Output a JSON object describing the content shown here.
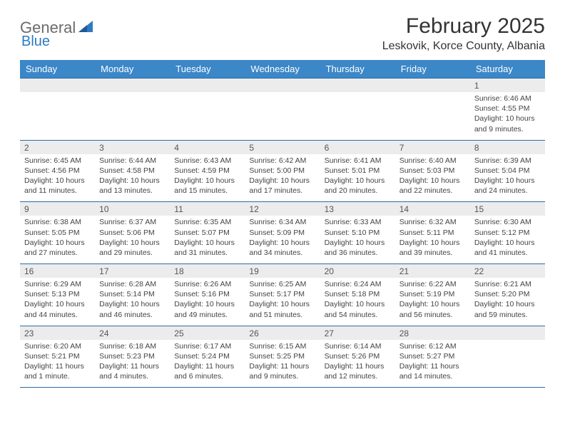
{
  "logo": {
    "word1": "General",
    "word2": "Blue"
  },
  "title": "February 2025",
  "location": "Leskovik, Korce County, Albania",
  "colors": {
    "header_bg": "#3b87c8",
    "header_text": "#ffffff",
    "daynum_bg": "#ececec",
    "border": "#2e6ca8",
    "logo_gray": "#6b6b6b",
    "logo_blue": "#2e7bbf"
  },
  "day_names": [
    "Sunday",
    "Monday",
    "Tuesday",
    "Wednesday",
    "Thursday",
    "Friday",
    "Saturday"
  ],
  "weeks": [
    {
      "nums": [
        "",
        "",
        "",
        "",
        "",
        "",
        "1"
      ],
      "data": [
        {},
        {},
        {},
        {},
        {},
        {},
        {
          "sunrise": "Sunrise: 6:46 AM",
          "sunset": "Sunset: 4:55 PM",
          "day1": "Daylight: 10 hours",
          "day2": "and 9 minutes."
        }
      ]
    },
    {
      "nums": [
        "2",
        "3",
        "4",
        "5",
        "6",
        "7",
        "8"
      ],
      "data": [
        {
          "sunrise": "Sunrise: 6:45 AM",
          "sunset": "Sunset: 4:56 PM",
          "day1": "Daylight: 10 hours",
          "day2": "and 11 minutes."
        },
        {
          "sunrise": "Sunrise: 6:44 AM",
          "sunset": "Sunset: 4:58 PM",
          "day1": "Daylight: 10 hours",
          "day2": "and 13 minutes."
        },
        {
          "sunrise": "Sunrise: 6:43 AM",
          "sunset": "Sunset: 4:59 PM",
          "day1": "Daylight: 10 hours",
          "day2": "and 15 minutes."
        },
        {
          "sunrise": "Sunrise: 6:42 AM",
          "sunset": "Sunset: 5:00 PM",
          "day1": "Daylight: 10 hours",
          "day2": "and 17 minutes."
        },
        {
          "sunrise": "Sunrise: 6:41 AM",
          "sunset": "Sunset: 5:01 PM",
          "day1": "Daylight: 10 hours",
          "day2": "and 20 minutes."
        },
        {
          "sunrise": "Sunrise: 6:40 AM",
          "sunset": "Sunset: 5:03 PM",
          "day1": "Daylight: 10 hours",
          "day2": "and 22 minutes."
        },
        {
          "sunrise": "Sunrise: 6:39 AM",
          "sunset": "Sunset: 5:04 PM",
          "day1": "Daylight: 10 hours",
          "day2": "and 24 minutes."
        }
      ]
    },
    {
      "nums": [
        "9",
        "10",
        "11",
        "12",
        "13",
        "14",
        "15"
      ],
      "data": [
        {
          "sunrise": "Sunrise: 6:38 AM",
          "sunset": "Sunset: 5:05 PM",
          "day1": "Daylight: 10 hours",
          "day2": "and 27 minutes."
        },
        {
          "sunrise": "Sunrise: 6:37 AM",
          "sunset": "Sunset: 5:06 PM",
          "day1": "Daylight: 10 hours",
          "day2": "and 29 minutes."
        },
        {
          "sunrise": "Sunrise: 6:35 AM",
          "sunset": "Sunset: 5:07 PM",
          "day1": "Daylight: 10 hours",
          "day2": "and 31 minutes."
        },
        {
          "sunrise": "Sunrise: 6:34 AM",
          "sunset": "Sunset: 5:09 PM",
          "day1": "Daylight: 10 hours",
          "day2": "and 34 minutes."
        },
        {
          "sunrise": "Sunrise: 6:33 AM",
          "sunset": "Sunset: 5:10 PM",
          "day1": "Daylight: 10 hours",
          "day2": "and 36 minutes."
        },
        {
          "sunrise": "Sunrise: 6:32 AM",
          "sunset": "Sunset: 5:11 PM",
          "day1": "Daylight: 10 hours",
          "day2": "and 39 minutes."
        },
        {
          "sunrise": "Sunrise: 6:30 AM",
          "sunset": "Sunset: 5:12 PM",
          "day1": "Daylight: 10 hours",
          "day2": "and 41 minutes."
        }
      ]
    },
    {
      "nums": [
        "16",
        "17",
        "18",
        "19",
        "20",
        "21",
        "22"
      ],
      "data": [
        {
          "sunrise": "Sunrise: 6:29 AM",
          "sunset": "Sunset: 5:13 PM",
          "day1": "Daylight: 10 hours",
          "day2": "and 44 minutes."
        },
        {
          "sunrise": "Sunrise: 6:28 AM",
          "sunset": "Sunset: 5:14 PM",
          "day1": "Daylight: 10 hours",
          "day2": "and 46 minutes."
        },
        {
          "sunrise": "Sunrise: 6:26 AM",
          "sunset": "Sunset: 5:16 PM",
          "day1": "Daylight: 10 hours",
          "day2": "and 49 minutes."
        },
        {
          "sunrise": "Sunrise: 6:25 AM",
          "sunset": "Sunset: 5:17 PM",
          "day1": "Daylight: 10 hours",
          "day2": "and 51 minutes."
        },
        {
          "sunrise": "Sunrise: 6:24 AM",
          "sunset": "Sunset: 5:18 PM",
          "day1": "Daylight: 10 hours",
          "day2": "and 54 minutes."
        },
        {
          "sunrise": "Sunrise: 6:22 AM",
          "sunset": "Sunset: 5:19 PM",
          "day1": "Daylight: 10 hours",
          "day2": "and 56 minutes."
        },
        {
          "sunrise": "Sunrise: 6:21 AM",
          "sunset": "Sunset: 5:20 PM",
          "day1": "Daylight: 10 hours",
          "day2": "and 59 minutes."
        }
      ]
    },
    {
      "nums": [
        "23",
        "24",
        "25",
        "26",
        "27",
        "28",
        ""
      ],
      "data": [
        {
          "sunrise": "Sunrise: 6:20 AM",
          "sunset": "Sunset: 5:21 PM",
          "day1": "Daylight: 11 hours",
          "day2": "and 1 minute."
        },
        {
          "sunrise": "Sunrise: 6:18 AM",
          "sunset": "Sunset: 5:23 PM",
          "day1": "Daylight: 11 hours",
          "day2": "and 4 minutes."
        },
        {
          "sunrise": "Sunrise: 6:17 AM",
          "sunset": "Sunset: 5:24 PM",
          "day1": "Daylight: 11 hours",
          "day2": "and 6 minutes."
        },
        {
          "sunrise": "Sunrise: 6:15 AM",
          "sunset": "Sunset: 5:25 PM",
          "day1": "Daylight: 11 hours",
          "day2": "and 9 minutes."
        },
        {
          "sunrise": "Sunrise: 6:14 AM",
          "sunset": "Sunset: 5:26 PM",
          "day1": "Daylight: 11 hours",
          "day2": "and 12 minutes."
        },
        {
          "sunrise": "Sunrise: 6:12 AM",
          "sunset": "Sunset: 5:27 PM",
          "day1": "Daylight: 11 hours",
          "day2": "and 14 minutes."
        },
        {}
      ]
    }
  ]
}
